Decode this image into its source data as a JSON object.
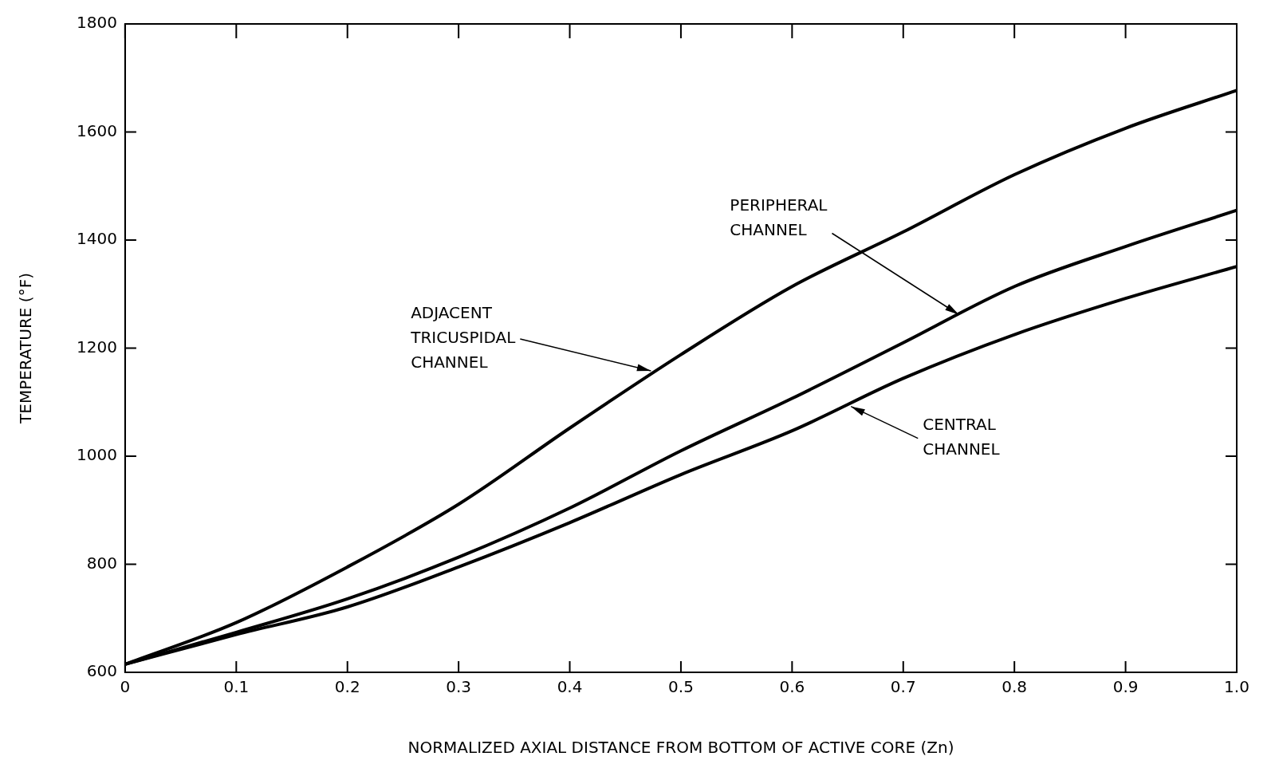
{
  "chart_data": {
    "type": "line",
    "xlabel": "NORMALIZED AXIAL DISTANCE FROM BOTTOM OF ACTIVE CORE (Zn)",
    "ylabel": "TEMPERATURE (°F)",
    "x": [
      0,
      0.1,
      0.2,
      0.3,
      0.4,
      0.5,
      0.6,
      0.7,
      0.8,
      0.9,
      1.0
    ],
    "series": [
      {
        "color": "#000000",
        "values": [
          615,
          692,
          795,
          911,
          1052,
          1188,
          1314,
          1415,
          1521,
          1607,
          1677
        ]
      },
      {
        "color": "#000000",
        "values": [
          615,
          674,
          736,
          813,
          904,
          1010,
          1107,
          1210,
          1314,
          1388,
          1455
        ]
      },
      {
        "color": "#000000",
        "values": [
          615,
          670,
          721,
          795,
          877,
          966,
          1047,
          1144,
          1225,
          1292,
          1351
        ]
      }
    ],
    "xlim": [
      0,
      1.0
    ],
    "ylim": [
      600,
      1800
    ],
    "xticks": [
      0,
      0.1,
      0.2,
      0.3,
      0.4,
      0.5,
      0.6,
      0.7,
      0.8,
      0.9,
      {
        "value": 1.0,
        "label": "1.0"
      }
    ],
    "yticks": [
      600,
      800,
      1000,
      1200,
      1400,
      1600,
      1800
    ],
    "grid": false,
    "legend": false,
    "marker": "none",
    "line_style": "solid",
    "annotations": [
      {
        "text": "ADJACENT\nTRICUSPIDAL\nCHANNEL",
        "x": 0.473,
        "y": 1158
      },
      {
        "text": "PERIPHERAL\nCHANNEL",
        "x": 0.75,
        "y": 1262
      },
      {
        "text": "CENTRAL\nCHANNEL",
        "x": 0.653,
        "y": 1092
      }
    ]
  }
}
